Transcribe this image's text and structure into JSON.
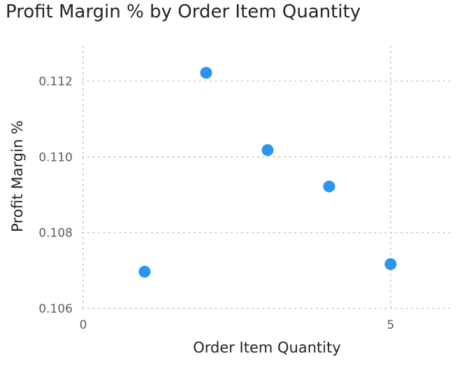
{
  "chart_data": {
    "type": "scatter",
    "title": "Profit Margin % by Order Item Quantity",
    "xlabel": "Order Item Quantity",
    "ylabel": "Profit Margin %",
    "xlim": [
      0,
      6
    ],
    "ylim": [
      0.106,
      0.113
    ],
    "x_ticks": [
      0,
      5
    ],
    "x_tick_labels": [
      "0",
      "5"
    ],
    "y_ticks": [
      0.106,
      0.108,
      0.11,
      0.112
    ],
    "y_tick_labels": [
      "0.106",
      "0.108",
      "0.110",
      "0.112"
    ],
    "grid": true,
    "series": [
      {
        "points": [
          {
            "x": 1,
            "y": 0.10697
          },
          {
            "x": 2,
            "y": 0.11222
          },
          {
            "x": 3,
            "y": 0.11018
          },
          {
            "x": 4,
            "y": 0.10922
          },
          {
            "x": 5,
            "y": 0.10717
          }
        ]
      }
    ],
    "marker_color": "#2b95f2"
  }
}
